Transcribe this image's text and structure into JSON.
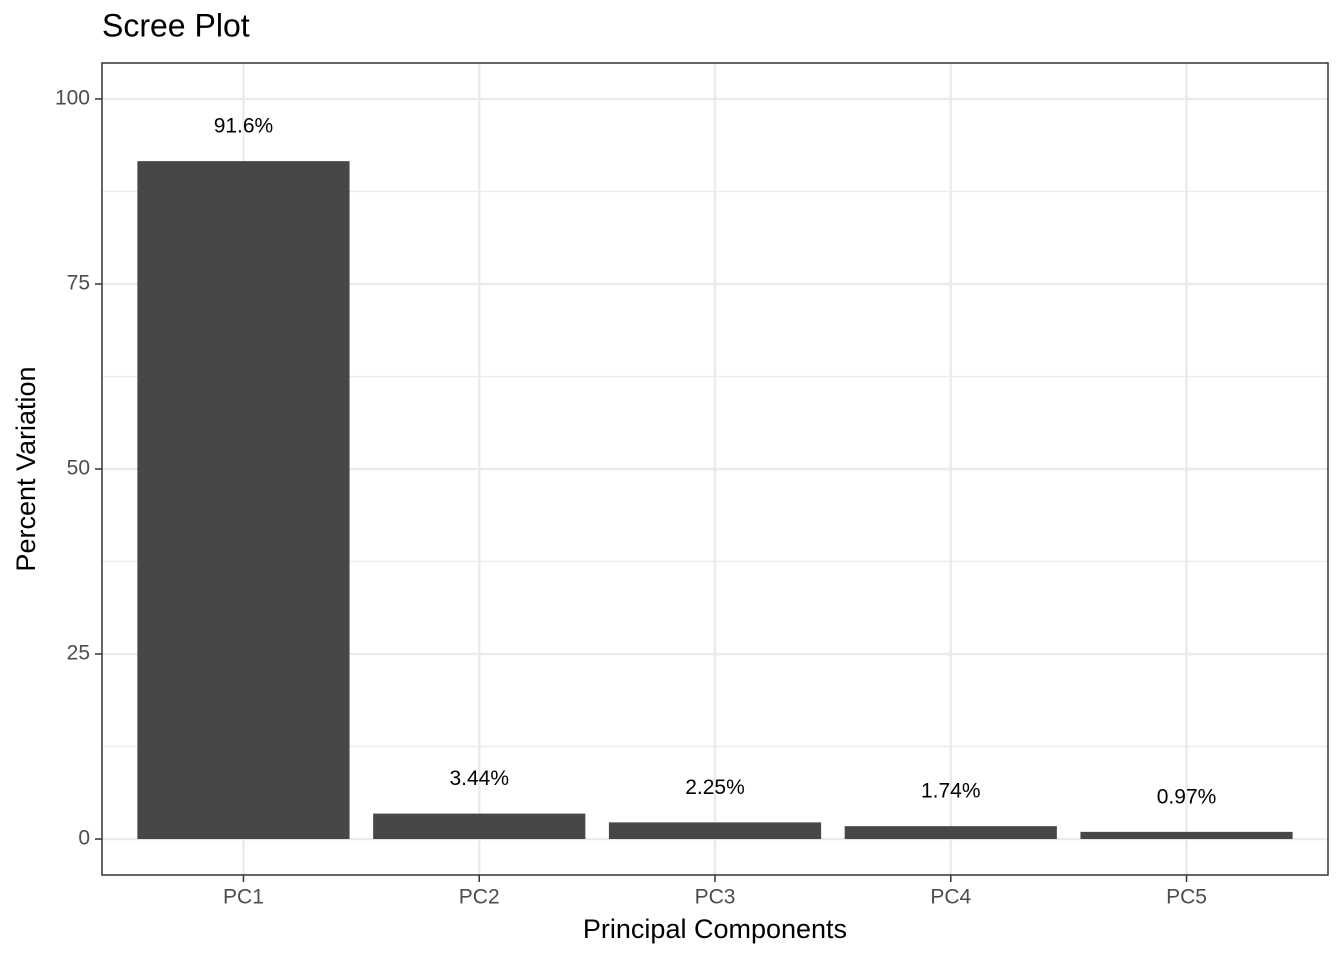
{
  "chart_data": {
    "type": "bar",
    "title": "Scree Plot",
    "x_label": "Principal Components",
    "y_label": "Percent Variation",
    "categories": [
      "PC1",
      "PC2",
      "PC3",
      "PC4",
      "PC5"
    ],
    "values": [
      91.6,
      3.44,
      2.25,
      1.74,
      0.97
    ],
    "value_labels": [
      "91.6%",
      "3.44%",
      "2.25%",
      "1.74%",
      "0.97%"
    ],
    "color": "#474747",
    "ylim": [
      -4.86,
      104.86
    ],
    "yticks": [
      0,
      25,
      50,
      75,
      100
    ],
    "grid": true
  }
}
